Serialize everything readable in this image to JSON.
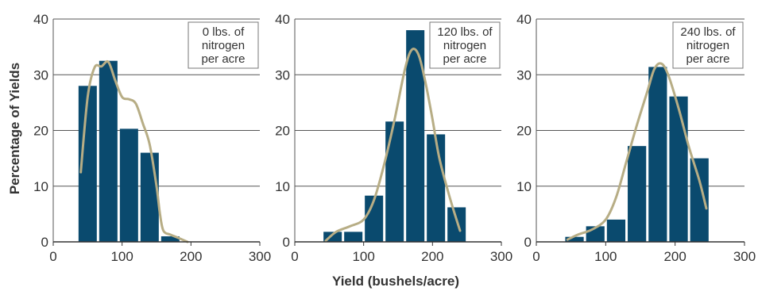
{
  "figure": {
    "ylabel": "Percentage of Yields",
    "xlabel": "Yield (bushels/acre)"
  },
  "colors": {
    "bar": "#0a4a6e",
    "curve": "#b7ad85",
    "grid": "#555555",
    "panel_bg": "#ffffff",
    "legend_border": "#777777"
  },
  "chart_data": [
    {
      "type": "bar",
      "legend": [
        "0 lbs. of",
        "nitrogen",
        "per acre"
      ],
      "x": [
        50,
        80,
        110,
        140,
        170
      ],
      "values": [
        28,
        32.5,
        20.3,
        16,
        1
      ],
      "bin_width": 30,
      "curve": [
        [
          40,
          12.5
        ],
        [
          50,
          26
        ],
        [
          60,
          31.3
        ],
        [
          70,
          31.5
        ],
        [
          80,
          32.3
        ],
        [
          90,
          29
        ],
        [
          100,
          26
        ],
        [
          110,
          25.6
        ],
        [
          120,
          24.8
        ],
        [
          130,
          21.3
        ],
        [
          140,
          17.5
        ],
        [
          150,
          10
        ],
        [
          155,
          5
        ],
        [
          160,
          2
        ],
        [
          170,
          1.3
        ],
        [
          180,
          0.8
        ],
        [
          195,
          0
        ]
      ],
      "xlim": [
        0,
        300
      ],
      "ylim": [
        0,
        40
      ],
      "xticks": [
        "0",
        "100",
        "200",
        "300"
      ],
      "yticks": [
        "0",
        "10",
        "20",
        "30",
        "40"
      ],
      "grid": "horizontal"
    },
    {
      "type": "bar",
      "legend": [
        "120 lbs. of",
        "nitrogen",
        "per acre"
      ],
      "x": [
        55,
        85,
        115,
        145,
        175,
        205,
        235
      ],
      "values": [
        1.8,
        1.8,
        8.3,
        21.6,
        38,
        19.3,
        6.2
      ],
      "bin_width": 30,
      "curve": [
        [
          45,
          0.2
        ],
        [
          60,
          1.8
        ],
        [
          80,
          2.8
        ],
        [
          100,
          4
        ],
        [
          115,
          7.5
        ],
        [
          130,
          14
        ],
        [
          145,
          22
        ],
        [
          160,
          31
        ],
        [
          170,
          34.5
        ],
        [
          180,
          33.5
        ],
        [
          190,
          28.5
        ],
        [
          200,
          22
        ],
        [
          210,
          15
        ],
        [
          225,
          8
        ],
        [
          240,
          2
        ]
      ],
      "xlim": [
        0,
        300
      ],
      "ylim": [
        0,
        40
      ],
      "xticks": [
        "0",
        "100",
        "200",
        "300"
      ],
      "yticks": [
        "0",
        "10",
        "20",
        "30",
        "40"
      ],
      "grid": "horizontal"
    },
    {
      "type": "bar",
      "legend": [
        "240 lbs. of",
        "nitrogen",
        "per acre"
      ],
      "x": [
        55,
        85,
        115,
        145,
        175,
        205,
        235
      ],
      "values": [
        0.9,
        2.8,
        4,
        17.2,
        31.4,
        26.1,
        15
      ],
      "bin_width": 30,
      "curve": [
        [
          45,
          0.4
        ],
        [
          60,
          1.3
        ],
        [
          80,
          2.2
        ],
        [
          100,
          4
        ],
        [
          115,
          8
        ],
        [
          130,
          14.5
        ],
        [
          145,
          21
        ],
        [
          160,
          27
        ],
        [
          170,
          31
        ],
        [
          180,
          32
        ],
        [
          190,
          30
        ],
        [
          205,
          24
        ],
        [
          220,
          17
        ],
        [
          235,
          11
        ],
        [
          245,
          6
        ]
      ],
      "xlim": [
        0,
        300
      ],
      "ylim": [
        0,
        40
      ],
      "xticks": [
        "0",
        "100",
        "200",
        "300"
      ],
      "yticks": [
        "0",
        "10",
        "20",
        "30",
        "40"
      ],
      "grid": "horizontal"
    }
  ]
}
